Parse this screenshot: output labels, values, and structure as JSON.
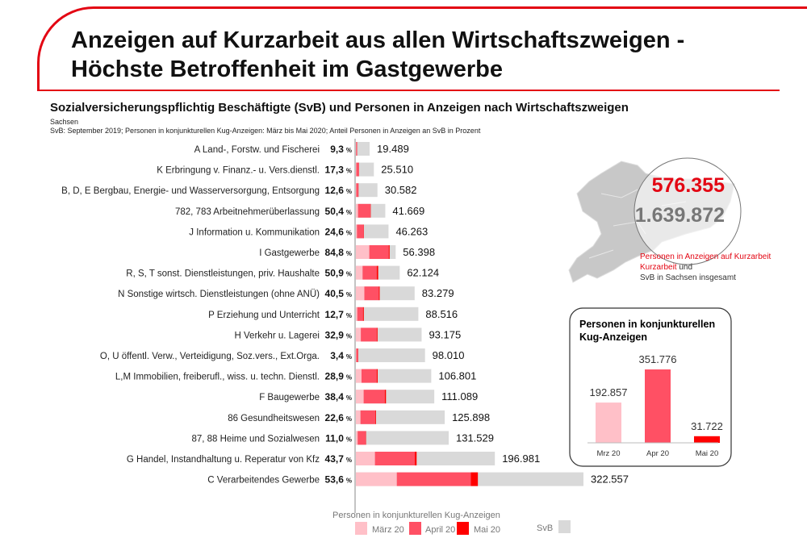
{
  "title_line1": "Anzeigen auf Kurzarbeit aus allen Wirtschaftszweigen -",
  "title_line2": "Höchste Betroffenheit im Gastgewerbe",
  "chart_title": "Sozialversicherungspflichtig Beschäftigte (SvB) und Personen in Anzeigen nach Wirtschaftszweigen",
  "region": "Sachsen",
  "source_note": "SvB: September 2019; Personen in konjunkturellen Kug-Anzeigen: März bis Mai 2020; Anteil Personen in Anzeigen an SvB in Prozent",
  "colors": {
    "maerz": "#ffc0c8",
    "april": "#ff5064",
    "mai": "#ff0000",
    "svb": "#d9d9d9",
    "accent": "#e30613"
  },
  "chart_data": [
    {
      "type": "bar",
      "orientation": "horizontal",
      "stacked": true,
      "categories": [
        "A Land-, Forstw. und Fischerei",
        "K Erbringung v. Finanz.- u. Vers.dienstl.",
        "B, D, E Bergbau, Energie- und Wasserversorgung, Entsorgung",
        "782, 783 Arbeitnehmerüberlassung",
        "J Information u. Kommunikation",
        "I Gastgewerbe",
        "R, S, T sonst. Dienstleistungen, priv. Haushalte",
        "N Sonstige wirtsch. Dienstleistungen (ohne ANÜ)",
        "P Erziehung und Unterricht",
        "H Verkehr u. Lagerei",
        "O, U öffentl. Verw., Verteidigung, Soz.vers., Ext.Orga.",
        "L,M Immobilien, freiberufl., wiss. u. techn. Dienstl.",
        "F Baugewerbe",
        "86 Gesundheitswesen",
        "87, 88 Heime und Sozialwesen",
        "G Handel, Instandhaltung u. Reperatur von Kfz",
        "C Verarbeitendes Gewerbe"
      ],
      "pct_labels": [
        "9,3",
        "17,3",
        "12,6",
        "50,4",
        "24,6",
        "84,8",
        "50,9",
        "40,5",
        "12,7",
        "32,9",
        "3,4",
        "28,9",
        "38,4",
        "22,6",
        "11,0",
        "43,7",
        "53,6"
      ],
      "pct_unit": "%",
      "svb": [
        19489,
        25510,
        30582,
        41669,
        46263,
        56398,
        62124,
        83279,
        88516,
        93175,
        98010,
        106801,
        111089,
        125898,
        131529,
        196981,
        322557
      ],
      "svb_labels": [
        "19.489",
        "25.510",
        "30.582",
        "41.669",
        "46.263",
        "56.398",
        "62.124",
        "83.279",
        "88.516",
        "93.175",
        "98.010",
        "106.801",
        "111.089",
        "125.898",
        "131.529",
        "196.981",
        "322.557"
      ],
      "series": [
        {
          "name": "März 20",
          "values": [
            300,
            600,
            500,
            3000,
            1500,
            19000,
            9500,
            12000,
            2000,
            7000,
            500,
            8000,
            11000,
            6500,
            2500,
            27000,
            58000
          ]
        },
        {
          "name": "April 20",
          "values": [
            1400,
            3600,
            3200,
            17500,
            9500,
            27500,
            20000,
            20500,
            8000,
            22500,
            2500,
            21500,
            30000,
            21000,
            11500,
            56500,
            105000
          ]
        },
        {
          "name": "Mai 20",
          "values": [
            112,
            213,
            153,
            501,
            381,
            1326,
            2121,
            1228,
            1242,
            1155,
            332,
            1365,
            1658,
            953,
            468,
            2581,
            9891
          ]
        }
      ],
      "legend_title": "Personen in konjunkturellen Kug-Anzeigen",
      "legend_svb": "SvB",
      "legend_position": "bottom",
      "xlim": [
        0,
        322557
      ]
    },
    {
      "type": "bar",
      "title": "Personen in konjunkturellen Kug-Anzeigen",
      "categories": [
        "Mrz 20",
        "Apr 20",
        "Mai 20"
      ],
      "values": [
        192857,
        351776,
        31722
      ],
      "value_labels": [
        "192.857",
        "351.776",
        "31.722"
      ]
    }
  ],
  "summary": {
    "kug_total": "576.355",
    "svb_total": "1.639.872",
    "note_red": "Personen in Anzeigen auf Kurzarbeit",
    "note_und": " und",
    "note_gray": "SvB in Sachsen insgesamt"
  }
}
